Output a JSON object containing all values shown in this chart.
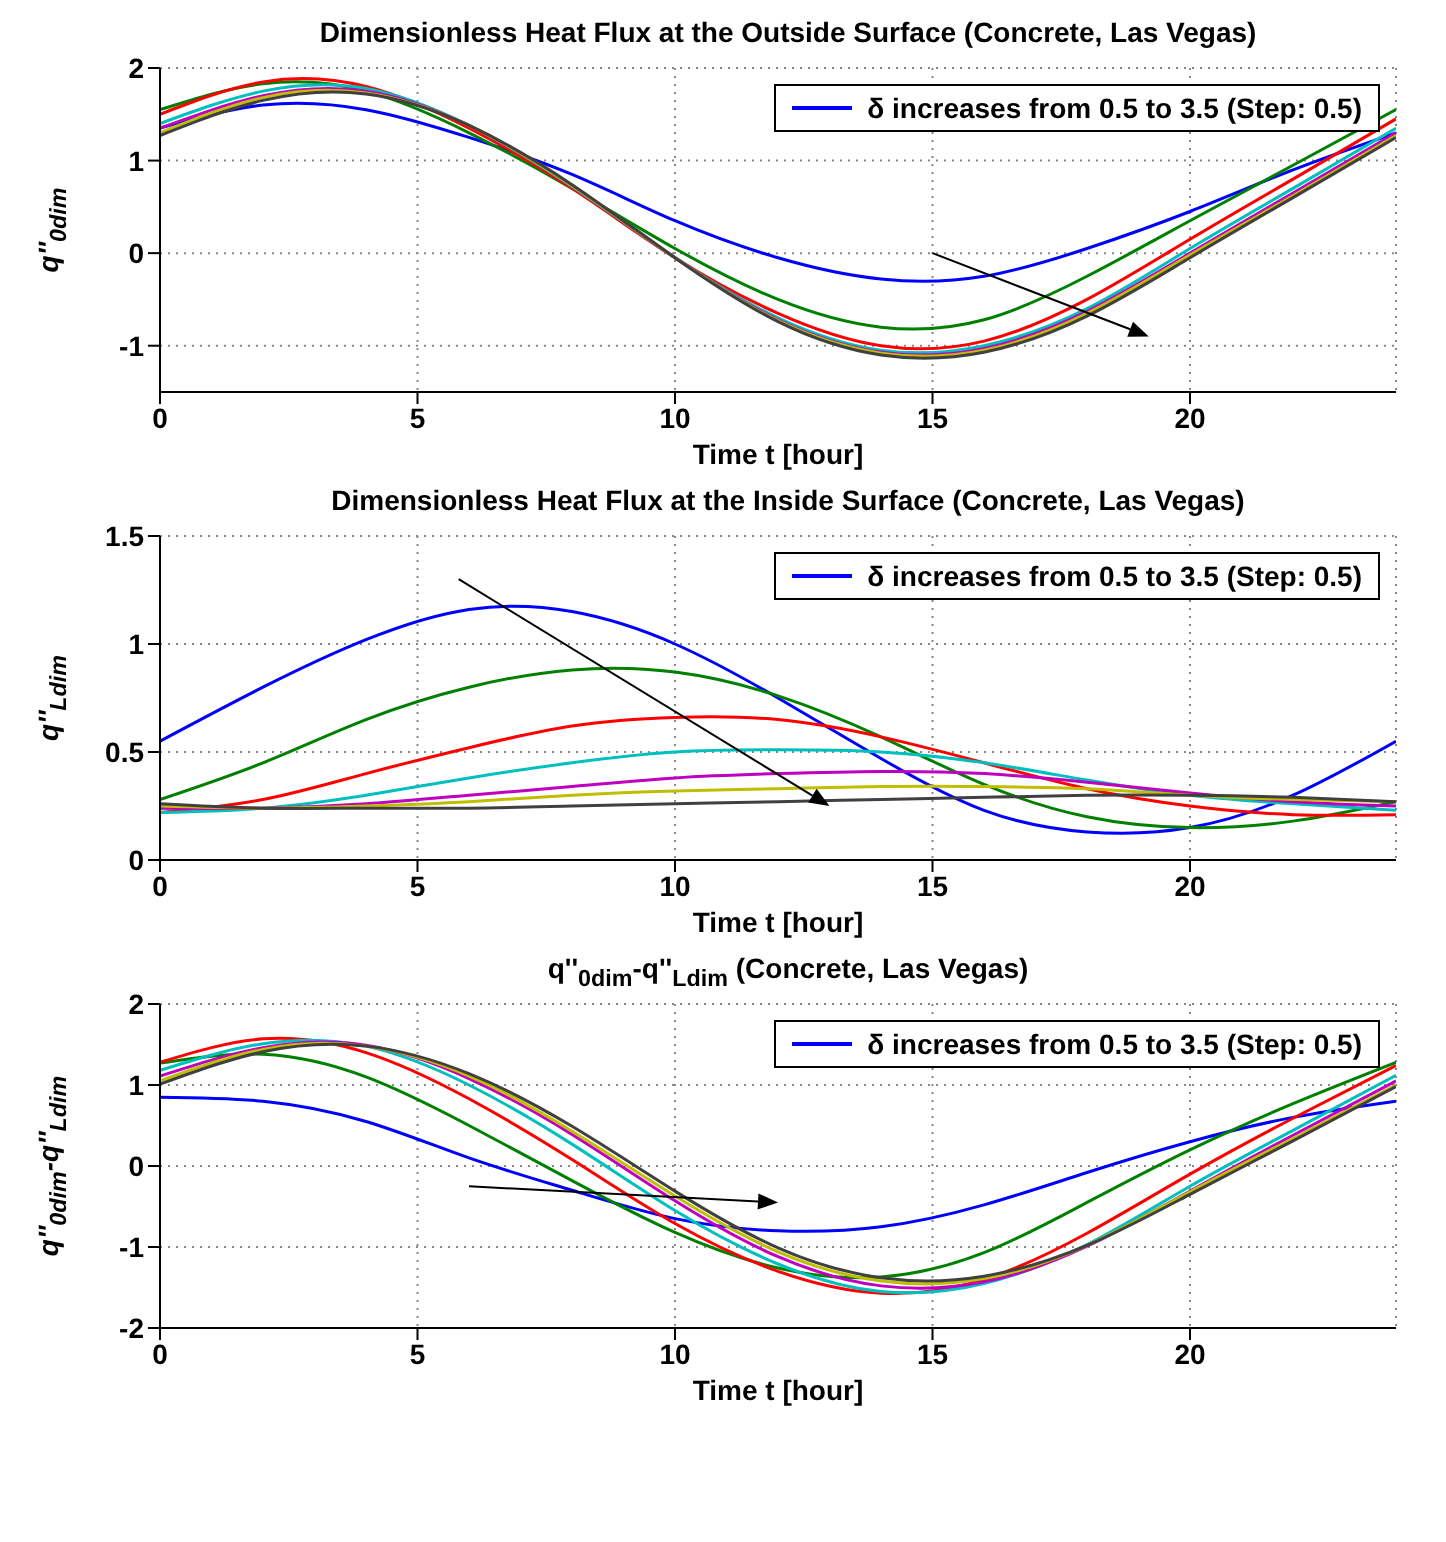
{
  "chart_data": [
    {
      "type": "line",
      "title": "Dimensionless Heat Flux at the Outside Surface (Concrete, Las Vegas)",
      "xlabel": "Time t [hour]",
      "ylabel": "q''$_{0dim}$",
      "x": [
        0,
        2,
        4,
        6,
        8,
        10,
        12,
        14,
        16,
        18,
        20,
        22,
        24
      ],
      "xlim": [
        0,
        24
      ],
      "xticks": [
        0,
        5,
        10,
        15,
        20
      ],
      "ylim": [
        -1.5,
        2
      ],
      "yticks": [
        -1,
        0,
        1,
        2
      ],
      "grid": true,
      "legend": "top right",
      "line_style": "solid",
      "marker": "none",
      "series": [
        {
          "name": "δ increases from 0.5 to 3.5 (Step: 0.5)",
          "color": "#0000ff",
          "values": [
            1.35,
            1.6,
            1.55,
            1.25,
            0.85,
            0.35,
            -0.05,
            -0.28,
            -0.25,
            0.05,
            0.45,
            0.9,
            1.3
          ]
        },
        {
          "color": "#008000",
          "values": [
            1.55,
            1.83,
            1.75,
            1.3,
            0.7,
            0.05,
            -0.5,
            -0.8,
            -0.72,
            -0.25,
            0.35,
            0.95,
            1.55
          ]
        },
        {
          "color": "#ff0000",
          "values": [
            1.5,
            1.85,
            1.8,
            1.35,
            0.7,
            -0.05,
            -0.65,
            -1.0,
            -0.95,
            -0.5,
            0.15,
            0.8,
            1.45
          ]
        },
        {
          "color": "#00bfbf",
          "values": [
            1.4,
            1.75,
            1.78,
            1.38,
            0.72,
            -0.05,
            -0.7,
            -1.05,
            -1.0,
            -0.6,
            0.05,
            0.7,
            1.35
          ]
        },
        {
          "color": "#bf00bf",
          "values": [
            1.35,
            1.7,
            1.75,
            1.38,
            0.73,
            -0.05,
            -0.72,
            -1.07,
            -1.03,
            -0.63,
            0.0,
            0.65,
            1.3
          ]
        },
        {
          "color": "#bfbf00",
          "values": [
            1.3,
            1.68,
            1.73,
            1.38,
            0.73,
            -0.05,
            -0.73,
            -1.08,
            -1.05,
            -0.65,
            -0.02,
            0.62,
            1.27
          ]
        },
        {
          "color": "#404040",
          "values": [
            1.27,
            1.65,
            1.72,
            1.38,
            0.74,
            -0.05,
            -0.74,
            -1.1,
            -1.07,
            -0.68,
            -0.05,
            0.6,
            1.25
          ]
        }
      ]
    },
    {
      "type": "line",
      "title": "Dimensionless Heat Flux at the Inside Surface (Concrete, Las Vegas)",
      "xlabel": "Time t [hour]",
      "ylabel": "q''$_{Ldim}$",
      "x": [
        0,
        2,
        4,
        6,
        8,
        10,
        12,
        14,
        16,
        18,
        20,
        22,
        24
      ],
      "xlim": [
        0,
        24
      ],
      "xticks": [
        0,
        5,
        10,
        15,
        20
      ],
      "ylim": [
        0,
        1.5
      ],
      "yticks": [
        0,
        0.5,
        1,
        1.5
      ],
      "grid": true,
      "legend": "top right",
      "line_style": "solid",
      "marker": "none",
      "series": [
        {
          "name": "δ increases from 0.5 to 3.5 (Step: 0.5)",
          "color": "#0000ff",
          "values": [
            0.55,
            0.8,
            1.02,
            1.16,
            1.15,
            1.0,
            0.75,
            0.47,
            0.23,
            0.13,
            0.15,
            0.3,
            0.55
          ]
        },
        {
          "color": "#008000",
          "values": [
            0.28,
            0.45,
            0.65,
            0.8,
            0.88,
            0.87,
            0.76,
            0.57,
            0.35,
            0.2,
            0.15,
            0.18,
            0.27
          ]
        },
        {
          "color": "#ff0000",
          "values": [
            0.22,
            0.28,
            0.4,
            0.52,
            0.62,
            0.66,
            0.65,
            0.57,
            0.45,
            0.33,
            0.25,
            0.21,
            0.21
          ]
        },
        {
          "color": "#00bfbf",
          "values": [
            0.22,
            0.24,
            0.3,
            0.38,
            0.45,
            0.5,
            0.51,
            0.5,
            0.45,
            0.37,
            0.3,
            0.26,
            0.23
          ]
        },
        {
          "color": "#bf00bf",
          "values": [
            0.24,
            0.24,
            0.26,
            0.3,
            0.34,
            0.38,
            0.4,
            0.41,
            0.4,
            0.36,
            0.31,
            0.27,
            0.25
          ]
        },
        {
          "color": "#bfbf00",
          "values": [
            0.25,
            0.24,
            0.25,
            0.27,
            0.3,
            0.32,
            0.33,
            0.34,
            0.34,
            0.33,
            0.3,
            0.28,
            0.27
          ]
        },
        {
          "color": "#404040",
          "values": [
            0.26,
            0.24,
            0.24,
            0.24,
            0.25,
            0.26,
            0.27,
            0.28,
            0.29,
            0.3,
            0.3,
            0.29,
            0.27
          ]
        }
      ]
    },
    {
      "type": "line",
      "title": "q''$_{0dim}$-q''$_{Ldim}$ (Concrete, Las Vegas)",
      "xlabel": "Time t [hour]",
      "ylabel": "q''$_{0dim}$-q''$_{Ldim}$",
      "x": [
        0,
        2,
        4,
        6,
        8,
        10,
        12,
        14,
        16,
        18,
        20,
        22,
        24
      ],
      "xlim": [
        0,
        24
      ],
      "xticks": [
        0,
        5,
        10,
        15,
        20
      ],
      "ylim": [
        -2,
        2
      ],
      "yticks": [
        -2,
        -1,
        0,
        1,
        2
      ],
      "grid": true,
      "legend": "top right",
      "line_style": "solid",
      "marker": "none",
      "series": [
        {
          "name": "δ increases from 0.5 to 3.5 (Step: 0.5)",
          "color": "#0000ff",
          "values": [
            0.85,
            0.8,
            0.55,
            0.1,
            -0.3,
            -0.65,
            -0.8,
            -0.75,
            -0.48,
            -0.08,
            0.3,
            0.6,
            0.8
          ]
        },
        {
          "color": "#008000",
          "values": [
            1.27,
            1.38,
            1.1,
            0.5,
            -0.18,
            -0.82,
            -1.26,
            -1.37,
            -1.07,
            -0.45,
            0.2,
            0.77,
            1.28
          ]
        },
        {
          "color": "#ff0000",
          "values": [
            1.28,
            1.57,
            1.4,
            0.83,
            0.08,
            -0.71,
            -1.3,
            -1.57,
            -1.4,
            -0.83,
            -0.1,
            0.59,
            1.24
          ]
        },
        {
          "color": "#00bfbf",
          "values": [
            1.18,
            1.51,
            1.48,
            1.0,
            0.27,
            -0.55,
            -1.21,
            -1.55,
            -1.45,
            -0.97,
            -0.25,
            0.44,
            1.12
          ]
        },
        {
          "color": "#bf00bf",
          "values": [
            1.11,
            1.46,
            1.49,
            1.08,
            0.39,
            -0.43,
            -1.12,
            -1.48,
            -1.43,
            -0.99,
            -0.31,
            0.38,
            1.05
          ]
        },
        {
          "color": "#bfbf00",
          "values": [
            1.05,
            1.44,
            1.48,
            1.11,
            0.43,
            -0.37,
            -1.06,
            -1.42,
            -1.39,
            -0.98,
            -0.32,
            0.34,
            1.0
          ]
        },
        {
          "color": "#404040",
          "values": [
            1.01,
            1.41,
            1.48,
            1.14,
            0.49,
            -0.31,
            -1.01,
            -1.38,
            -1.36,
            -0.98,
            -0.35,
            0.31,
            0.98
          ]
        }
      ]
    }
  ]
}
